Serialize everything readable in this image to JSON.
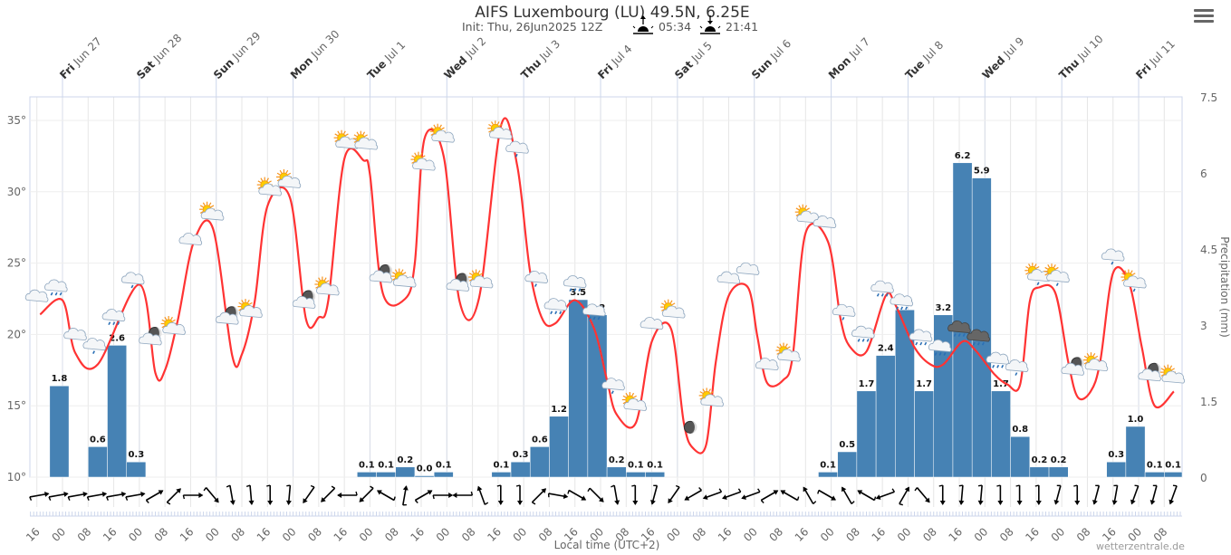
{
  "header": {
    "title": "AIFS Luxembourg (LU) 49.5N, 6.25E",
    "init": "Init: Thu, 26Jun2025 12Z",
    "sunrise": "05:34",
    "sunset": "21:41",
    "sunrise_icon": "sunrise-icon",
    "sunset_icon": "sunset-icon"
  },
  "menu": {
    "icon": "hamburger-menu-icon"
  },
  "credit": "wetterzentrale.de",
  "chart_data": {
    "type": "line+bar",
    "title": "AIFS Luxembourg (LU) 49.5N, 6.25E",
    "xlabel": "Local time (UTC+2)",
    "ylabel_left": "",
    "ylabel_right": "Precipitation (mm)",
    "ylim_left": [
      10,
      36.6
    ],
    "ylim_right": [
      0,
      7.5
    ],
    "left_ticks": [
      "10°",
      "15°",
      "20°",
      "25°",
      "30°",
      "35°"
    ],
    "right_ticks": [
      "0",
      "1.5",
      "3",
      "4.5",
      "6",
      "7.5"
    ],
    "grid": true,
    "colors": {
      "temperature": "#ff3333",
      "precipitation": "#4682b4",
      "grid": "#e6e6e6"
    },
    "date_labels": [
      {
        "day": "Fri",
        "date": "Jun 27"
      },
      {
        "day": "Sat",
        "date": "Jun 28"
      },
      {
        "day": "Sun",
        "date": "Jun 29"
      },
      {
        "day": "Mon",
        "date": "Jun 30"
      },
      {
        "day": "Tue",
        "date": "Jul 1"
      },
      {
        "day": "Wed",
        "date": "Jul 2"
      },
      {
        "day": "Thu",
        "date": "Jul 3"
      },
      {
        "day": "Fri",
        "date": "Jul 4"
      },
      {
        "day": "Sat",
        "date": "Jul 5"
      },
      {
        "day": "Sun",
        "date": "Jul 6"
      },
      {
        "day": "Mon",
        "date": "Jul 7"
      },
      {
        "day": "Tue",
        "date": "Jul 8"
      },
      {
        "day": "Wed",
        "date": "Jul 9"
      },
      {
        "day": "Thu",
        "date": "Jul 10"
      },
      {
        "day": "Fri",
        "date": "Jul 11"
      }
    ],
    "hour_labels": [
      "16",
      "00",
      "08",
      "16",
      "00",
      "08",
      "16",
      "00",
      "08",
      "16",
      "00",
      "08",
      "16",
      "00",
      "08",
      "16",
      "00",
      "08",
      "16",
      "00",
      "08",
      "16",
      "00",
      "08",
      "16",
      "00",
      "08",
      "16",
      "00",
      "08",
      "16",
      "00",
      "08",
      "16",
      "00",
      "08",
      "16",
      "00",
      "08",
      "16",
      "00",
      "08",
      "16",
      "00",
      "08"
    ],
    "temperature": [
      [
        "2025-06-26T17:00",
        21.4
      ],
      [
        "2025-06-27T00:00",
        22.4
      ],
      [
        "2025-06-27T04:00",
        18.7
      ],
      [
        "2025-06-27T11:00",
        17.9
      ],
      [
        "2025-06-28T00:00",
        23.5
      ],
      [
        "2025-06-28T05:00",
        17.3
      ],
      [
        "2025-06-28T08:00",
        17.5
      ],
      [
        "2025-06-28T12:00",
        21.0
      ],
      [
        "2025-06-28T17:00",
        26.5
      ],
      [
        "2025-06-28T23:00",
        27.4
      ],
      [
        "2025-06-29T05:00",
        18.5
      ],
      [
        "2025-06-29T08:00",
        18.6
      ],
      [
        "2025-06-29T12:00",
        22.3
      ],
      [
        "2025-06-29T16:00",
        29.0
      ],
      [
        "2025-06-29T23:00",
        29.6
      ],
      [
        "2025-06-30T04:00",
        21.1
      ],
      [
        "2025-06-30T08:00",
        21.2
      ],
      [
        "2025-06-30T11:00",
        22.4
      ],
      [
        "2025-06-30T16:00",
        32.3
      ],
      [
        "2025-06-30T22:00",
        32.2
      ],
      [
        "2025-07-01T00:00",
        31.2
      ],
      [
        "2025-07-01T04:00",
        22.9
      ],
      [
        "2025-07-01T11:00",
        22.5
      ],
      [
        "2025-07-01T14:00",
        25.0
      ],
      [
        "2025-07-01T17:00",
        33.7
      ],
      [
        "2025-07-01T23:00",
        32.5
      ],
      [
        "2025-07-02T04:00",
        22.3
      ],
      [
        "2025-07-02T10:00",
        22.5
      ],
      [
        "2025-07-02T17:00",
        34.7
      ],
      [
        "2025-07-02T22:00",
        31.8
      ],
      [
        "2025-07-03T02:00",
        24.4
      ],
      [
        "2025-07-03T06:00",
        21.0
      ],
      [
        "2025-07-03T10:00",
        20.8
      ],
      [
        "2025-07-03T16:00",
        22.4
      ],
      [
        "2025-07-03T22:00",
        20.4
      ],
      [
        "2025-07-04T02:00",
        16.8
      ],
      [
        "2025-07-04T05:00",
        14.4
      ],
      [
        "2025-07-04T11:00",
        13.8
      ],
      [
        "2025-07-04T16:00",
        19.5
      ],
      [
        "2025-07-04T22:00",
        20.4
      ],
      [
        "2025-07-05T02:00",
        13.8
      ],
      [
        "2025-07-05T05:00",
        12.0
      ],
      [
        "2025-07-05T09:00",
        12.3
      ],
      [
        "2025-07-05T12:00",
        18.1
      ],
      [
        "2025-07-05T16:00",
        22.7
      ],
      [
        "2025-07-05T22:00",
        23.3
      ],
      [
        "2025-07-06T01:00",
        19.8
      ],
      [
        "2025-07-06T04:00",
        16.6
      ],
      [
        "2025-07-06T09:00",
        16.8
      ],
      [
        "2025-07-06T12:00",
        18.5
      ],
      [
        "2025-07-06T16:00",
        27.1
      ],
      [
        "2025-07-06T23:00",
        26.5
      ],
      [
        "2025-07-07T03:00",
        21.0
      ],
      [
        "2025-07-07T06:00",
        19.1
      ],
      [
        "2025-07-07T11:00",
        18.8
      ],
      [
        "2025-07-07T17:00",
        22.7
      ],
      [
        "2025-07-07T20:00",
        22.1
      ],
      [
        "2025-07-08T02:00",
        19.1
      ],
      [
        "2025-07-08T07:00",
        17.9
      ],
      [
        "2025-07-08T11:00",
        17.9
      ],
      [
        "2025-07-08T17:00",
        19.5
      ],
      [
        "2025-07-08T21:00",
        18.9
      ],
      [
        "2025-07-09T03:00",
        17.2
      ],
      [
        "2025-07-09T07:00",
        16.5
      ],
      [
        "2025-07-09T11:00",
        16.5
      ],
      [
        "2025-07-09T14:00",
        22.3
      ],
      [
        "2025-07-09T17:00",
        23.3
      ],
      [
        "2025-07-09T22:00",
        22.9
      ],
      [
        "2025-07-10T02:00",
        18.1
      ],
      [
        "2025-07-10T05:00",
        15.6
      ],
      [
        "2025-07-10T09:00",
        16.0
      ],
      [
        "2025-07-10T12:00",
        18.1
      ],
      [
        "2025-07-10T16:00",
        24.3
      ],
      [
        "2025-07-10T21:00",
        23.6
      ],
      [
        "2025-07-11T01:00",
        19.1
      ],
      [
        "2025-07-11T05:00",
        15.0
      ],
      [
        "2025-07-11T11:00",
        16.0
      ]
    ],
    "precipitation": {
      "period_hours": 6,
      "first_period_start": "2025-06-26T14:00",
      "values": [
        null,
        1.8,
        null,
        0.6,
        2.6,
        0.3,
        null,
        null,
        null,
        null,
        null,
        null,
        null,
        null,
        null,
        null,
        null,
        0.1,
        0.1,
        0.2,
        0.0,
        0.1,
        null,
        null,
        0.1,
        0.3,
        0.6,
        1.2,
        3.5,
        3.2,
        0.2,
        0.1,
        0.1,
        null,
        null,
        null,
        null,
        null,
        null,
        null,
        null,
        0.1,
        0.5,
        1.7,
        2.4,
        3.3,
        1.7,
        3.2,
        6.2,
        5.9,
        1.7,
        0.8,
        0.2,
        0.2,
        null,
        null,
        0.3,
        1.0,
        0.1,
        0.1
      ]
    },
    "weather_symbols": [
      "cloudy",
      "rain",
      "cloudy",
      "light-rain",
      "rain",
      "light-rain",
      "partly-cloudy-night",
      "partly-cloudy-day",
      "cloudy",
      "partly-cloudy-day",
      "partly-cloudy-night",
      "partly-cloudy-day",
      "partly-cloudy-day",
      "partly-cloudy-day",
      "partly-cloudy-night",
      "partly-cloudy-day",
      "partly-cloudy-day",
      "partly-cloudy-day",
      "partly-cloudy-night",
      "partly-cloudy-day",
      "partly-cloudy-day",
      "partly-cloudy-day",
      "partly-cloudy-night",
      "partly-cloudy-day",
      "partly-cloudy-day",
      "light-rain",
      "light-rain",
      "rain",
      "rain",
      "rain",
      "light-rain",
      "partly-cloudy-day",
      "cloudy",
      "partly-cloudy-day",
      "clear-night",
      "partly-cloudy-day",
      "cloudy",
      "cloudy",
      "cloudy",
      "partly-cloudy-day",
      "partly-cloudy-day",
      "cloudy",
      "light-rain",
      "rain",
      "rain",
      "rain",
      "rain",
      "rain",
      "thunderstorm",
      "thunderstorm",
      "rain",
      "light-rain",
      "sun-rain",
      "sun-rain",
      "partly-cloudy-night",
      "partly-cloudy-day",
      "light-rain",
      "sun-rain",
      "partly-cloudy-night",
      "partly-cloudy-day"
    ],
    "wind_from_deg": [
      260,
      260,
      260,
      260,
      260,
      260,
      240,
      225,
      270,
      320,
      350,
      355,
      0,
      5,
      35,
      45,
      90,
      45,
      120,
      190,
      240,
      270,
      90,
      160,
      0,
      0,
      225,
      280,
      300,
      315,
      350,
      0,
      15,
      35,
      60,
      70,
      70,
      70,
      240,
      120,
      150,
      300,
      150,
      120,
      70,
      210,
      320,
      0,
      5,
      5,
      0,
      0,
      0,
      15,
      0,
      15,
      10,
      20,
      15,
      20
    ]
  }
}
